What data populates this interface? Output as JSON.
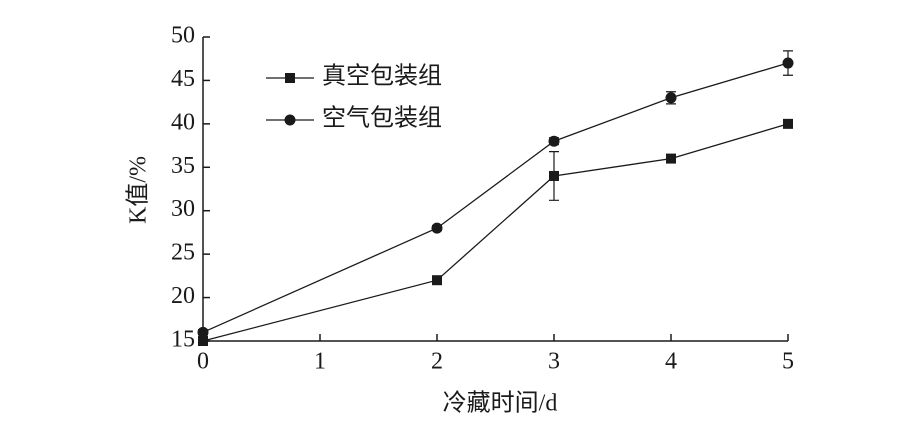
{
  "chart_data": {
    "type": "line",
    "x": [
      0,
      2,
      3,
      4,
      5
    ],
    "xlabel": "冷藏时间/d",
    "ylabel": "K值/%",
    "xlim": [
      0,
      5
    ],
    "xticks": [
      0,
      1,
      2,
      3,
      4,
      5
    ],
    "ylim": [
      15,
      50
    ],
    "yticks": [
      15,
      20,
      25,
      30,
      35,
      40,
      45,
      50
    ],
    "legend": "upper left",
    "series": [
      {
        "name": "真空包装组",
        "color": "#1a1a1a",
        "marker": "square",
        "values": [
          15,
          22,
          34,
          36,
          40
        ],
        "errors": [
          0.3,
          0.4,
          2.8,
          0.4,
          0.4
        ]
      },
      {
        "name": "空气包装组",
        "color": "#1a1a1a",
        "marker": "circle",
        "values": [
          16,
          28,
          38,
          43,
          47
        ],
        "errors": [
          0.3,
          0.3,
          0.4,
          0.7,
          1.4
        ]
      }
    ]
  }
}
